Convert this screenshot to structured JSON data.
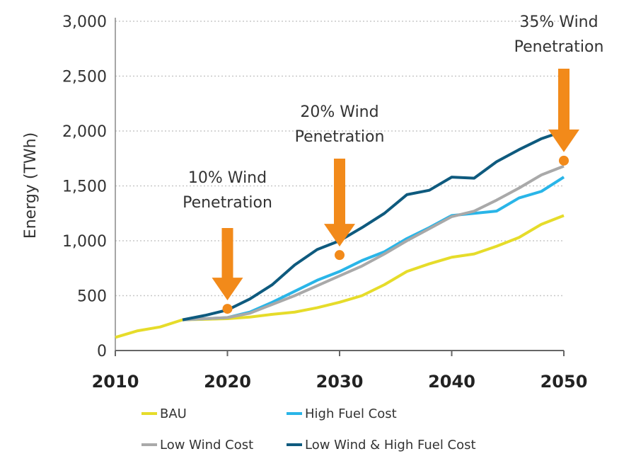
{
  "chart_data": {
    "type": "line",
    "title": "",
    "xlabel": "",
    "ylabel": "Energy (TWh)",
    "xlim": [
      2010,
      2050
    ],
    "ylim": [
      0,
      3000
    ],
    "x_ticks": [
      "2010",
      "2020",
      "2030",
      "2040",
      "2050"
    ],
    "y_ticks": [
      "0",
      "500",
      "1,000",
      "1,500",
      "2,000",
      "2,500",
      "3,000"
    ],
    "grid": "horizontal dotted",
    "legend": "bottom",
    "series": [
      {
        "name": "BAU",
        "color": "#e6dc2a",
        "x": [
          2010,
          2012,
          2014,
          2016,
          2018,
          2020,
          2022,
          2024,
          2026,
          2028,
          2030,
          2032,
          2034,
          2036,
          2038,
          2040,
          2042,
          2044,
          2046,
          2048,
          2050
        ],
        "y": [
          120,
          180,
          215,
          280,
          285,
          290,
          305,
          330,
          350,
          390,
          440,
          500,
          600,
          720,
          790,
          850,
          880,
          950,
          1030,
          1150,
          1230
        ]
      },
      {
        "name": "High Fuel Cost",
        "color": "#29b5e8",
        "x": [
          2016,
          2018,
          2020,
          2022,
          2024,
          2026,
          2028,
          2030,
          2032,
          2034,
          2036,
          2038,
          2040,
          2042,
          2044,
          2046,
          2048,
          2050
        ],
        "y": [
          280,
          290,
          300,
          350,
          440,
          540,
          640,
          720,
          820,
          900,
          1020,
          1120,
          1230,
          1250,
          1270,
          1390,
          1450,
          1580
        ]
      },
      {
        "name": "Low Wind Cost",
        "color": "#a9a9a9",
        "x": [
          2016,
          2018,
          2020,
          2022,
          2024,
          2026,
          2028,
          2030,
          2032,
          2034,
          2036,
          2038,
          2040,
          2042,
          2044,
          2046,
          2048,
          2050
        ],
        "y": [
          280,
          290,
          300,
          340,
          420,
          500,
          590,
          680,
          770,
          880,
          1000,
          1110,
          1220,
          1270,
          1370,
          1480,
          1600,
          1680
        ]
      },
      {
        "name": "Low Wind & High Fuel Cost",
        "color": "#0e5a7e",
        "x": [
          2016,
          2018,
          2020,
          2022,
          2024,
          2026,
          2028,
          2030,
          2032,
          2034,
          2036,
          2038,
          2040,
          2042,
          2044,
          2046,
          2048,
          2050
        ],
        "y": [
          280,
          320,
          370,
          470,
          600,
          780,
          920,
          1000,
          1120,
          1250,
          1420,
          1460,
          1580,
          1570,
          1720,
          1830,
          1930,
          2000
        ]
      }
    ],
    "annotations": [
      {
        "label_line1": "10% Wind",
        "label_line2": "Penetration",
        "x": 2020,
        "y": 380
      },
      {
        "label_line1": "20% Wind",
        "label_line2": "Penetration",
        "x": 2030,
        "y": 870
      },
      {
        "label_line1": "35% Wind",
        "label_line2": "Penetration",
        "x": 2050,
        "y": 1730
      }
    ],
    "annotation_color": "#f28a1a"
  }
}
